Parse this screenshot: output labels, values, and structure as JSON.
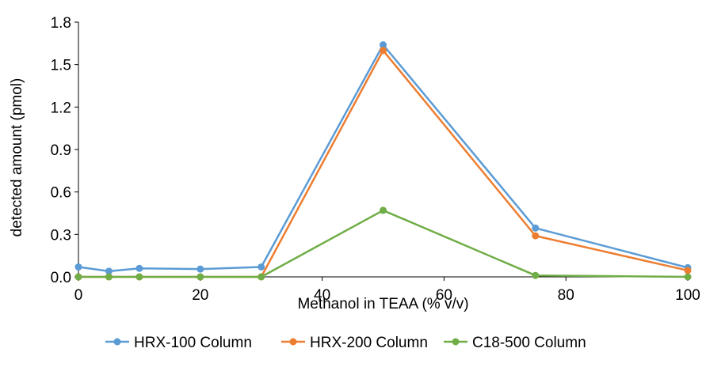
{
  "chart_data": {
    "type": "line",
    "title": "",
    "xlabel": "Methanol in TEAA (% v/v)",
    "ylabel": "detected amount (pmol)",
    "xlim": [
      0,
      100
    ],
    "ylim": [
      0,
      1.8
    ],
    "xticks": [
      "0",
      "20",
      "40",
      "60",
      "80",
      "100"
    ],
    "yticks": [
      "0.0",
      "0.3",
      "0.6",
      "0.9",
      "1.2",
      "1.5",
      "1.8"
    ],
    "x": [
      0,
      5,
      10,
      20,
      30,
      50,
      75,
      100
    ],
    "grid": false,
    "legend_position": "bottom",
    "series": [
      {
        "name": "HRX-100 Column",
        "color": "#5B9BD5",
        "values": [
          0.07,
          0.04,
          0.06,
          0.055,
          0.07,
          1.64,
          0.345,
          0.065
        ]
      },
      {
        "name": "HRX-200 Column",
        "color": "#ED7D31",
        "values": [
          0.0,
          0.0,
          0.0,
          0.0,
          0.0,
          1.6,
          0.29,
          0.045
        ]
      },
      {
        "name": "C18-500 Column",
        "color": "#70AD47",
        "values": [
          0.0,
          0.0,
          0.0,
          0.0,
          0.0,
          0.47,
          0.01,
          0.0
        ]
      }
    ]
  }
}
